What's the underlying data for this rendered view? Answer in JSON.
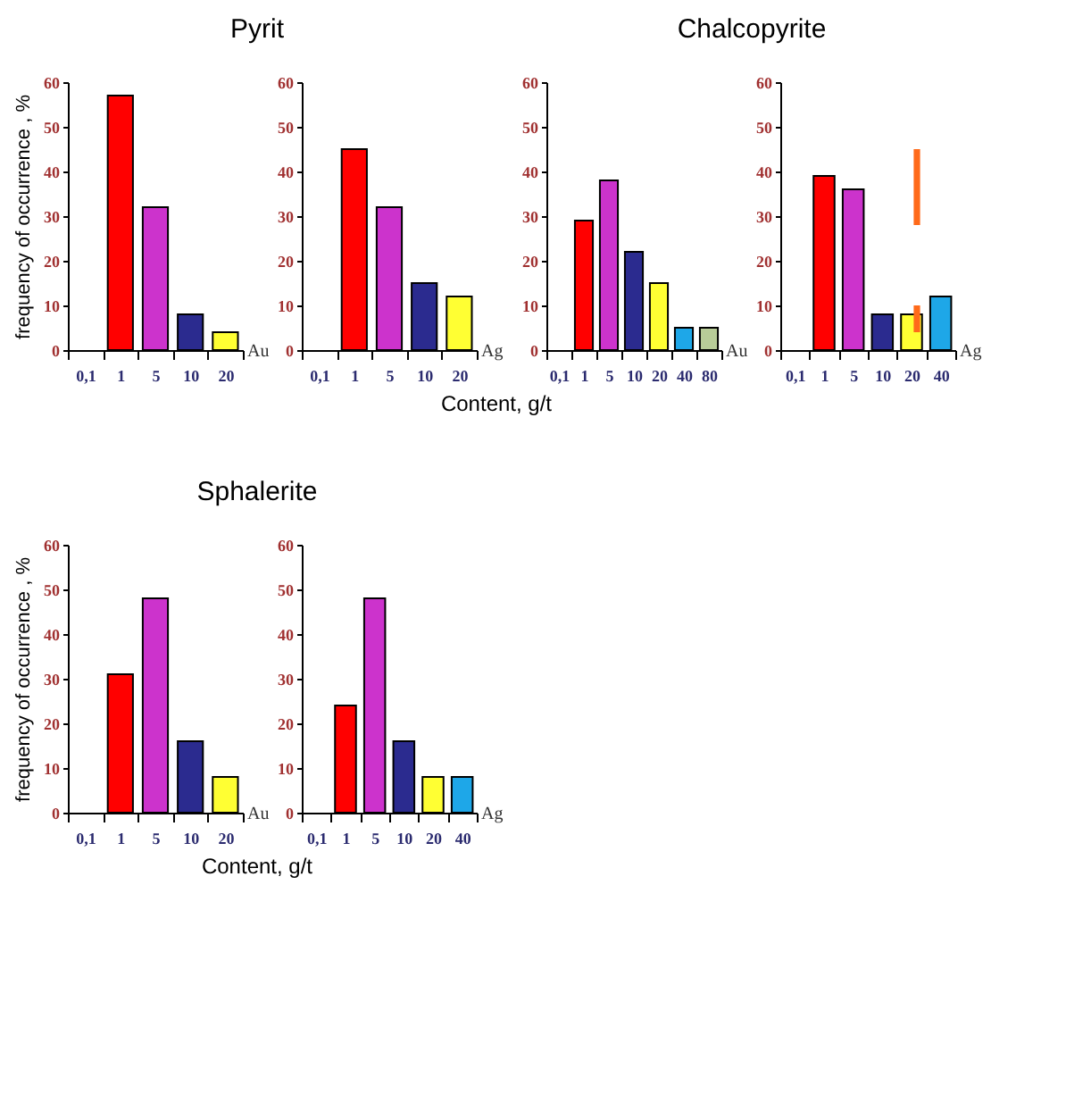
{
  "chart_data": [
    {
      "type": "bar",
      "title": "Pyrit",
      "xlabel": "Au",
      "ylabel": "frequency of occurrence , %",
      "annotations": [
        "Content, g/t"
      ],
      "categories": [
        "0,1",
        "1",
        "5",
        "10",
        "20"
      ],
      "values": [
        null,
        57,
        32,
        8,
        4
      ],
      "colors": [
        null,
        "#ff0000",
        "#cc33cc",
        "#2b2b8f",
        "#ffff33"
      ],
      "ylim": [
        0,
        60
      ],
      "yticks": [
        0,
        10,
        20,
        30,
        40,
        50,
        60
      ]
    },
    {
      "type": "bar",
      "xlabel": "Ag",
      "categories": [
        "0,1",
        "1",
        "5",
        "10",
        "20"
      ],
      "values": [
        null,
        45,
        32,
        15,
        12
      ],
      "colors": [
        null,
        "#ff0000",
        "#cc33cc",
        "#2b2b8f",
        "#ffff33"
      ],
      "ylim": [
        0,
        60
      ],
      "yticks": [
        0,
        10,
        20,
        30,
        40,
        50,
        60
      ]
    },
    {
      "type": "bar",
      "title": "Chalcopyrite",
      "xlabel": "Au",
      "categories": [
        "0,1",
        "1",
        "5",
        "10",
        "20",
        "40",
        "80"
      ],
      "values": [
        null,
        29,
        38,
        22,
        15,
        5,
        5
      ],
      "colors": [
        null,
        "#ff0000",
        "#cc33cc",
        "#2b2b8f",
        "#ffff33",
        "#1ea7e8",
        "#b8cc98"
      ],
      "ylim": [
        0,
        60
      ],
      "yticks": [
        0,
        10,
        20,
        30,
        40,
        50,
        60
      ]
    },
    {
      "type": "bar",
      "xlabel": "Ag",
      "categories": [
        "0,1",
        "1",
        "5",
        "10",
        "20",
        "40"
      ],
      "series": [
        {
          "values": [
            null,
            39,
            36,
            8,
            8,
            12
          ],
          "colors": [
            null,
            "#ff0000",
            "#cc33cc",
            "#2b2b8f",
            "#ffff33",
            "#1ea7e8"
          ]
        },
        {
          "color": "#ff6a1a",
          "values": [
            null,
            null,
            null,
            null,
            17,
            null
          ],
          "base": [
            null,
            null,
            null,
            null,
            28,
            null
          ]
        },
        {
          "color": "#ff6a1a",
          "values": [
            null,
            null,
            null,
            null,
            6,
            null
          ],
          "base": [
            null,
            null,
            null,
            null,
            4,
            null
          ]
        }
      ],
      "ylim": [
        0,
        60
      ],
      "yticks": [
        0,
        10,
        20,
        30,
        40,
        50,
        60
      ]
    },
    {
      "type": "bar",
      "title": "Sphalerite",
      "xlabel": "Au",
      "ylabel": "frequency of occurrence , %",
      "annotations": [
        "Content, g/t"
      ],
      "categories": [
        "0,1",
        "1",
        "5",
        "10",
        "20"
      ],
      "values": [
        null,
        31,
        48,
        16,
        8
      ],
      "colors": [
        null,
        "#ff0000",
        "#cc33cc",
        "#2b2b8f",
        "#ffff33"
      ],
      "ylim": [
        0,
        60
      ],
      "yticks": [
        0,
        10,
        20,
        30,
        40,
        50,
        60
      ]
    },
    {
      "type": "bar",
      "xlabel": "Ag",
      "categories": [
        "0,1",
        "1",
        "5",
        "10",
        "20",
        "40"
      ],
      "values": [
        null,
        24,
        48,
        16,
        8,
        8
      ],
      "colors": [
        null,
        "#ff0000",
        "#cc33cc",
        "#2b2b8f",
        "#ffff33",
        "#1ea7e8"
      ],
      "ylim": [
        0,
        60
      ],
      "yticks": [
        0,
        10,
        20,
        30,
        40,
        50,
        60
      ]
    }
  ]
}
